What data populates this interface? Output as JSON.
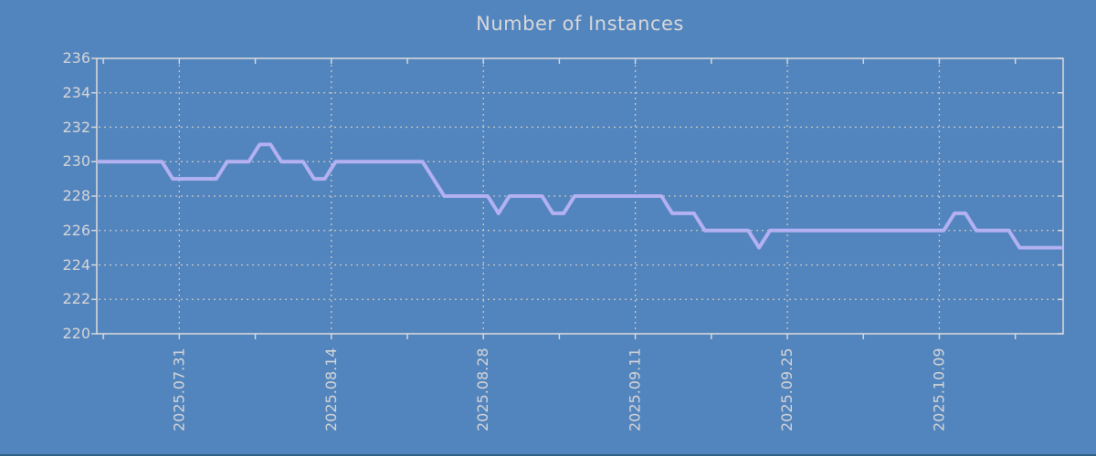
{
  "title": "Number of Instances",
  "colors": {
    "background": "#5284be",
    "line": "#b3b1f2",
    "grid": "#cdc9c0",
    "frame": "#dcdcdc",
    "text": "#d6d6d6",
    "title_text": "#d9d9d9",
    "bottom_edge": "#2f6186"
  },
  "chart_data": {
    "type": "line",
    "title": "Number of Instances",
    "xlabel": "",
    "ylabel": "",
    "ylim": [
      220,
      236
    ],
    "y_ticks": [
      220,
      222,
      224,
      226,
      228,
      230,
      232,
      234,
      236
    ],
    "grid": true,
    "legend": "none",
    "x_axis": {
      "days_total": 89,
      "minor_tick_first_day": 0.6,
      "minor_tick_interval_days": 7,
      "labeled_ticks": [
        {
          "day": 7.6,
          "label": "2025.07.31"
        },
        {
          "day": 21.6,
          "label": "2025.08.14"
        },
        {
          "day": 35.6,
          "label": "2025.08.28"
        },
        {
          "day": 49.6,
          "label": "2025.09.11"
        },
        {
          "day": 63.6,
          "label": "2025.09.25"
        },
        {
          "day": 77.6,
          "label": "2025.10.09"
        }
      ]
    },
    "series": [
      {
        "name": "instances",
        "sample_interval": "daily",
        "values": [
          230,
          230,
          230,
          230,
          230,
          230,
          230,
          229,
          229,
          229,
          229,
          229,
          230,
          230,
          230,
          231,
          231,
          230,
          230,
          230,
          229,
          229,
          230,
          230,
          230,
          230,
          230,
          230,
          230,
          230,
          230,
          229,
          228,
          228,
          228,
          228,
          228,
          227,
          228,
          228,
          228,
          228,
          227,
          227,
          228,
          228,
          228,
          228,
          228,
          228,
          228,
          228,
          228,
          227,
          227,
          227,
          226,
          226,
          226,
          226,
          226,
          225,
          226,
          226,
          226,
          226,
          226,
          226,
          226,
          226,
          226,
          226,
          226,
          226,
          226,
          226,
          226,
          226,
          226,
          227,
          227,
          226,
          226,
          226,
          226,
          225,
          225,
          225,
          225,
          225
        ]
      }
    ]
  }
}
